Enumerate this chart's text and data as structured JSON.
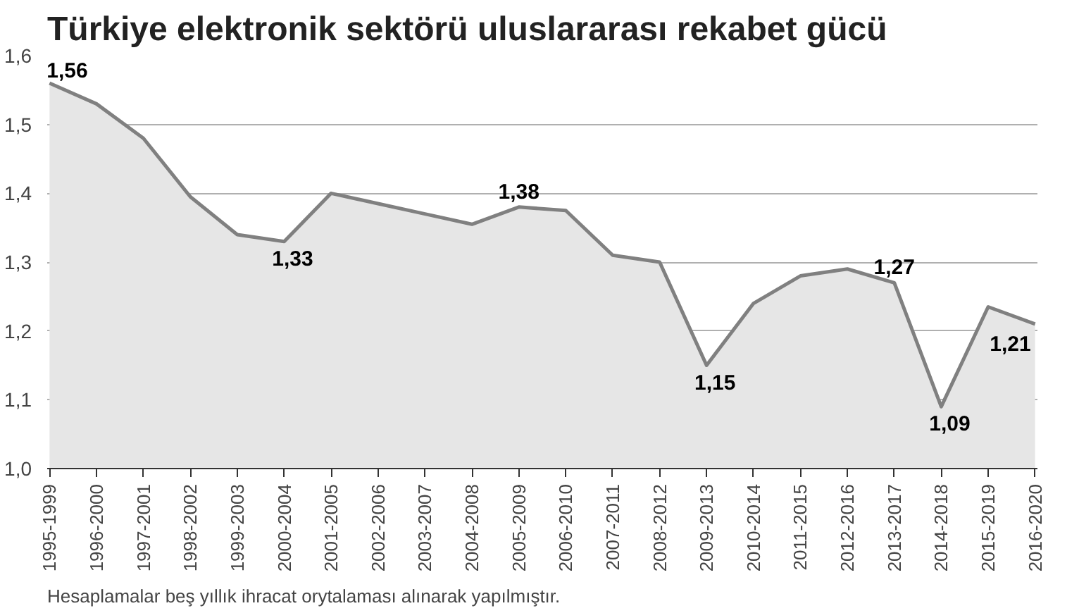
{
  "chart_data": {
    "type": "area",
    "title": "Türkiye elektronik sektörü uluslararası rekabet gücü",
    "categories": [
      "1995-1999",
      "1996-2000",
      "1997-2001",
      "1998-2002",
      "1999-2003",
      "2000-2004",
      "2001-2005",
      "2002-2006",
      "2003-2007",
      "2004-2008",
      "2005-2009",
      "2006-2010",
      "2007-2011",
      "2008-2012",
      "2009-2013",
      "2010-2014",
      "2011-2015",
      "2012-2016",
      "2013-2017",
      "2014-2018",
      "2015-2019",
      "2016-2020"
    ],
    "series": [
      {
        "color": "#808080",
        "values": [
          1.56,
          1.53,
          1.48,
          1.395,
          1.34,
          1.33,
          1.4,
          1.385,
          1.37,
          1.355,
          1.38,
          1.375,
          1.31,
          1.3,
          1.15,
          1.24,
          1.28,
          1.29,
          1.27,
          1.09,
          1.235,
          1.21
        ],
        "value_labels": [
          "1,56",
          null,
          null,
          null,
          null,
          "1,33",
          null,
          null,
          null,
          null,
          "1,38",
          null,
          null,
          null,
          "1,15",
          null,
          null,
          null,
          "1,27",
          "1,09",
          null,
          "1,21"
        ]
      }
    ],
    "ylim": [
      1.0,
      1.6
    ],
    "yticks": [
      {
        "value": 1.0,
        "label": "1,0"
      },
      {
        "value": 1.1,
        "label": "1,1"
      },
      {
        "value": 1.2,
        "label": "1,2"
      },
      {
        "value": 1.3,
        "label": "1,3"
      },
      {
        "value": 1.4,
        "label": "1,4"
      },
      {
        "value": 1.5,
        "label": "1,5"
      },
      {
        "value": 1.6,
        "label": "1,6"
      }
    ],
    "grid": "y",
    "marker": "none",
    "line_style": "solid",
    "annotations": [
      "Hesaplamalar beş yıllık ihracat orytalaması alınarak yapılmıştır."
    ]
  }
}
